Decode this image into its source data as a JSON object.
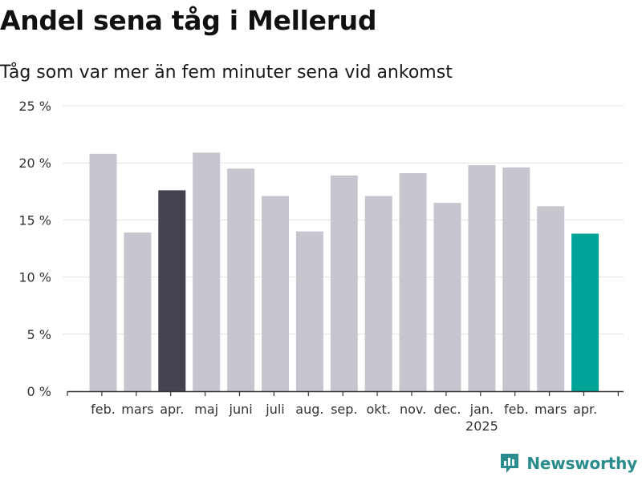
{
  "title": "Andel sena tåg i Mellerud",
  "subtitle": "Tåg som var mer än fem minuter sena vid ankomst",
  "brand": "Newsworthy",
  "colors": {
    "bar": "#c7c6ce",
    "highlight_dark": "#43424f",
    "highlight_accent": "#00a398",
    "grid": "#e3e3e3",
    "axis": "#333333",
    "brand": "#2a8c8c"
  },
  "chart_data": {
    "type": "bar",
    "categories": [
      "feb.",
      "mars",
      "apr.",
      "maj",
      "juni",
      "juli",
      "aug.",
      "sep.",
      "okt.",
      "nov.",
      "dec.",
      "jan.",
      "feb.",
      "mars",
      "apr."
    ],
    "year_labels": [
      {
        "index": 11,
        "label": "2025"
      }
    ],
    "values": [
      20.8,
      13.9,
      17.6,
      20.9,
      19.5,
      17.1,
      14.0,
      18.9,
      17.1,
      19.1,
      16.5,
      19.8,
      19.6,
      16.2,
      13.8
    ],
    "highlight": {
      "2": "dark",
      "14": "accent"
    },
    "yticks": [
      "0 %",
      "5 %",
      "10 %",
      "15 %",
      "20 %",
      "25 %"
    ],
    "ytick_values": [
      0,
      5,
      10,
      15,
      20,
      25
    ],
    "ylim": [
      0,
      25
    ],
    "grid": true,
    "legend": "none"
  }
}
